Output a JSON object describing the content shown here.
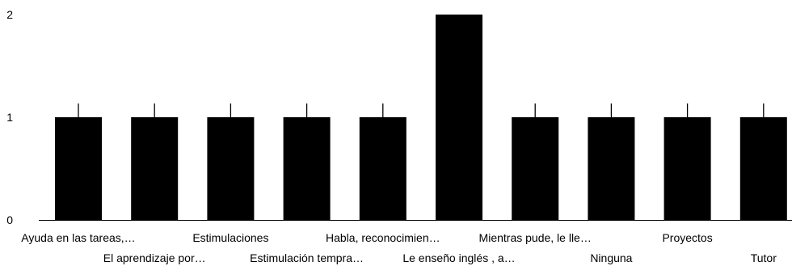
{
  "chart_data": {
    "type": "bar",
    "title": "",
    "xlabel": "",
    "ylabel": "",
    "ylim": [
      0,
      2
    ],
    "yticks": [
      0,
      1,
      2
    ],
    "grid": false,
    "legend": "none",
    "bar_color": "#000000",
    "axis_color": "#000000",
    "categories": [
      "Ayuda en las tareas,…",
      "El aprendizaje por…",
      "Estimulaciones",
      "Estimulación tempra…",
      "Habla, reconocimien…",
      "Le enseño inglés , a…",
      "Mientras pude, le lle…",
      "Ninguna",
      "Proyectos",
      "Tutor"
    ],
    "values": [
      1,
      1,
      1,
      1,
      1,
      2,
      1,
      1,
      1,
      1
    ],
    "error_bars": true
  }
}
